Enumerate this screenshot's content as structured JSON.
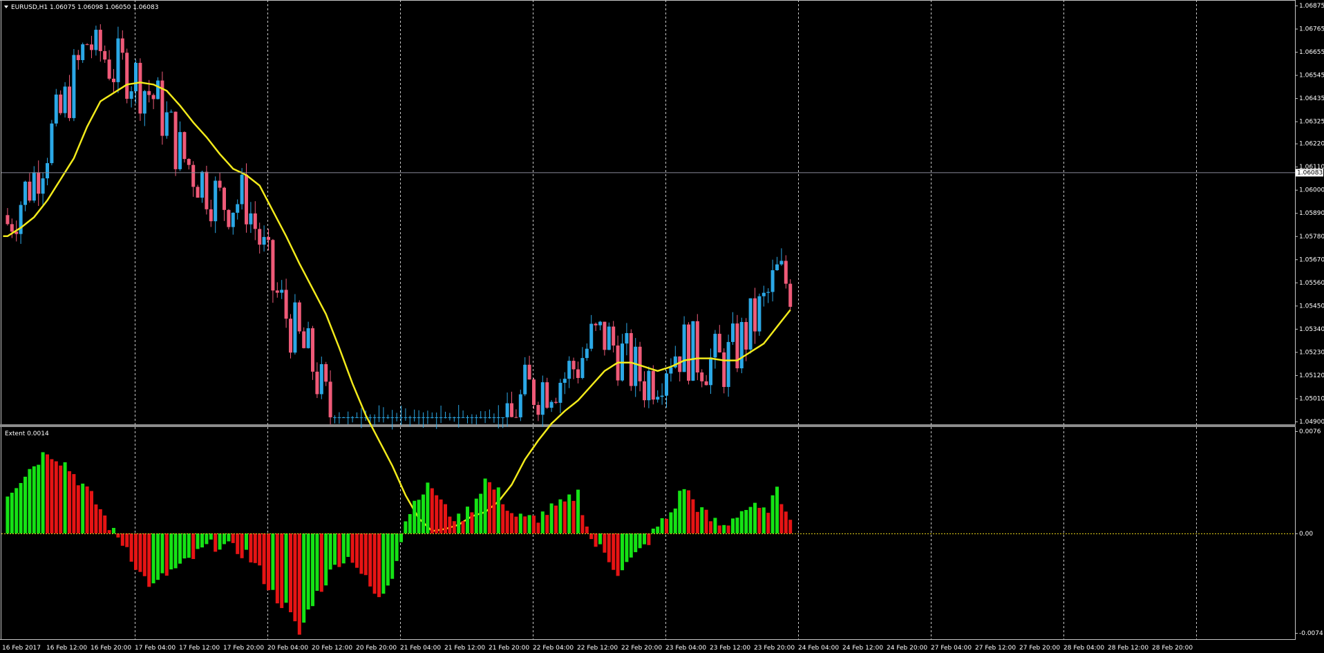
{
  "main_chart": {
    "symbol_info": "EURUSD,H1  1.06075 1.06098 1.06050 1.06083",
    "price_axis": [
      "1.06875",
      "1.06765",
      "1.06655",
      "1.06545",
      "1.06435",
      "1.06325",
      "1.06220",
      "1.06110",
      "1.06000",
      "1.05890",
      "1.05780",
      "1.05670",
      "1.05560",
      "1.05450",
      "1.05340",
      "1.05230",
      "1.05120",
      "1.05010",
      "1.04900"
    ],
    "price_range": [
      1.049,
      1.06875
    ],
    "current_price": "1.06083",
    "current_price_value": 1.06083
  },
  "indicator": {
    "title": "Extent 0.0014",
    "axis": [
      "0.0076",
      "0.00",
      "-0.0074"
    ],
    "range": [
      -0.0074,
      0.0076
    ]
  },
  "time_axis": [
    "16 Feb 2017",
    "16 Feb 12:00",
    "16 Feb 20:00",
    "17 Feb 04:00",
    "17 Feb 12:00",
    "17 Feb 20:00",
    "20 Feb 04:00",
    "20 Feb 12:00",
    "20 Feb 20:00",
    "21 Feb 04:00",
    "21 Feb 12:00",
    "21 Feb 20:00",
    "22 Feb 04:00",
    "22 Feb 12:00",
    "22 Feb 20:00",
    "23 Feb 04:00",
    "23 Feb 12:00",
    "23 Feb 20:00",
    "24 Feb 04:00",
    "24 Feb 12:00",
    "24 Feb 20:00",
    "27 Feb 04:00",
    "27 Feb 12:00",
    "27 Feb 20:00",
    "28 Feb 04:00",
    "28 Feb 12:00",
    "28 Feb 20:00"
  ],
  "colors": {
    "bull": "#2ba8e6",
    "bear": "#ef5a78",
    "ma": "#f2ea1b",
    "hist_up": "#15e215",
    "hist_down": "#e61414",
    "grid": "#c8c8c8",
    "text": "#ffffff"
  },
  "chart_data": {
    "type": "candlestick",
    "timeframe": "H1",
    "bar_count": 178,
    "moving_average_path": [
      [
        1,
        1.0578
      ],
      [
        4,
        1.0582
      ],
      [
        7,
        1.0587
      ],
      [
        10,
        1.0595
      ],
      [
        13,
        1.0605
      ],
      [
        16,
        1.0615
      ],
      [
        19,
        1.063
      ],
      [
        22,
        1.0642
      ],
      [
        25,
        1.0646
      ],
      [
        28,
        1.065
      ],
      [
        31,
        1.0651
      ],
      [
        34,
        1.065
      ],
      [
        37,
        1.0647
      ],
      [
        40,
        1.064
      ],
      [
        43,
        1.0632
      ],
      [
        46,
        1.0625
      ],
      [
        49,
        1.0617
      ],
      [
        52,
        1.061
      ],
      [
        55,
        1.0607
      ],
      [
        58,
        1.0602
      ],
      [
        61,
        1.059
      ],
      [
        64,
        1.0578
      ],
      [
        67,
        1.0565
      ],
      [
        70,
        1.0553
      ],
      [
        73,
        1.0541
      ],
      [
        76,
        1.0525
      ],
      [
        79,
        1.0508
      ],
      [
        82,
        1.0493
      ],
      [
        85,
        1.0481
      ],
      [
        88,
        1.0469
      ],
      [
        91,
        1.0455
      ],
      [
        94,
        1.0444
      ],
      [
        97,
        1.0438
      ],
      [
        100,
        1.0439
      ],
      [
        103,
        1.0441
      ],
      [
        106,
        1.0445
      ],
      [
        109,
        1.0447
      ],
      [
        112,
        1.0452
      ],
      [
        115,
        1.046
      ],
      [
        118,
        1.0472
      ],
      [
        121,
        1.0481
      ],
      [
        124,
        1.0489
      ],
      [
        127,
        1.0495
      ],
      [
        130,
        1.05
      ],
      [
        133,
        1.0507
      ],
      [
        136,
        1.0514
      ],
      [
        139,
        1.0518
      ],
      [
        142,
        1.0518
      ],
      [
        145,
        1.0516
      ],
      [
        148,
        1.0514
      ],
      [
        151,
        1.0516
      ],
      [
        154,
        1.0519
      ],
      [
        157,
        1.052
      ],
      [
        160,
        1.052
      ],
      [
        163,
        1.0519
      ],
      [
        166,
        1.0519
      ],
      [
        169,
        1.0523
      ],
      [
        172,
        1.0527
      ],
      [
        175,
        1.0535
      ],
      [
        178,
        1.0543
      ]
    ],
    "histogram_path": [
      [
        1,
        0.003
      ],
      [
        6,
        0.0048
      ],
      [
        10,
        0.0062
      ],
      [
        14,
        0.0052
      ],
      [
        18,
        0.0036
      ],
      [
        22,
        0.0018
      ],
      [
        25,
        0.0
      ],
      [
        28,
        -0.001
      ],
      [
        31,
        -0.003
      ],
      [
        34,
        -0.004
      ],
      [
        37,
        -0.003
      ],
      [
        40,
        -0.0025
      ],
      [
        43,
        -0.0018
      ],
      [
        46,
        -0.001
      ],
      [
        49,
        -0.0008
      ],
      [
        52,
        -0.0012
      ],
      [
        55,
        -0.0015
      ],
      [
        58,
        -0.0028
      ],
      [
        61,
        -0.0045
      ],
      [
        64,
        -0.0055
      ],
      [
        67,
        -0.0075
      ],
      [
        70,
        -0.005
      ],
      [
        73,
        -0.0035
      ],
      [
        76,
        -0.002
      ],
      [
        79,
        -0.0018
      ],
      [
        82,
        -0.0035
      ],
      [
        85,
        -0.005
      ],
      [
        88,
        -0.003
      ],
      [
        91,
        0.001
      ],
      [
        94,
        0.003
      ],
      [
        97,
        0.0035
      ],
      [
        100,
        0.0018
      ],
      [
        103,
        0.001
      ],
      [
        106,
        0.002
      ],
      [
        109,
        0.004
      ],
      [
        112,
        0.003
      ],
      [
        115,
        0.0015
      ],
      [
        118,
        0.001
      ],
      [
        121,
        0.0012
      ],
      [
        124,
        0.0018
      ],
      [
        127,
        0.0022
      ],
      [
        130,
        0.003
      ],
      [
        133,
        -0.0005
      ],
      [
        136,
        -0.0015
      ],
      [
        139,
        -0.0028
      ],
      [
        142,
        -0.002
      ],
      [
        145,
        -0.001
      ],
      [
        148,
        0.0005
      ],
      [
        151,
        0.0015
      ],
      [
        154,
        0.0035
      ],
      [
        157,
        0.002
      ],
      [
        160,
        0.001
      ],
      [
        163,
        0.0005
      ],
      [
        166,
        0.0015
      ],
      [
        169,
        0.002
      ],
      [
        172,
        0.0015
      ],
      [
        175,
        0.003
      ],
      [
        178,
        0.0015
      ]
    ]
  }
}
